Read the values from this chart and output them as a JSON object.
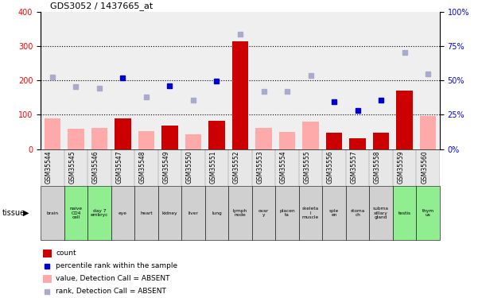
{
  "title": "GDS3052 / 1437665_at",
  "samples": [
    "GSM35544",
    "GSM35545",
    "GSM35546",
    "GSM35547",
    "GSM35548",
    "GSM35549",
    "GSM35550",
    "GSM35551",
    "GSM35552",
    "GSM35553",
    "GSM35554",
    "GSM35555",
    "GSM35556",
    "GSM35557",
    "GSM35558",
    "GSM35559",
    "GSM35560"
  ],
  "tissues": [
    "brain",
    "naive\nCD4\ncell",
    "day 7\nembryc",
    "eye",
    "heart",
    "kidney",
    "liver",
    "lung",
    "lymph\nnode",
    "ovar\ny",
    "placen\nta",
    "skeleta\nl\nmuscle",
    "sple\nen",
    "stoma\nch",
    "subma\nxillary\ngland",
    "testis",
    "thym\nus"
  ],
  "tissue_green": [
    false,
    true,
    true,
    false,
    false,
    false,
    false,
    false,
    false,
    false,
    false,
    false,
    false,
    false,
    false,
    true,
    true
  ],
  "count_values": [
    null,
    null,
    null,
    90,
    null,
    68,
    null,
    83,
    315,
    null,
    null,
    null,
    47,
    32,
    47,
    170,
    null
  ],
  "count_absent": [
    90,
    58,
    62,
    null,
    53,
    null,
    42,
    null,
    null,
    62,
    50,
    80,
    null,
    null,
    null,
    null,
    97
  ],
  "rank_values": [
    null,
    null,
    null,
    207,
    null,
    185,
    null,
    198,
    null,
    null,
    null,
    null,
    138,
    112,
    142,
    null,
    null
  ],
  "rank_absent": [
    210,
    182,
    178,
    null,
    153,
    null,
    143,
    null,
    335,
    168,
    168,
    215,
    null,
    null,
    null,
    282,
    220
  ],
  "ylim_left": [
    0,
    400
  ],
  "ylim_right": [
    0,
    100
  ],
  "yticks_left": [
    0,
    100,
    200,
    300,
    400
  ],
  "yticks_right": [
    0,
    25,
    50,
    75,
    100
  ],
  "ytick_labels_right": [
    "0%",
    "25%",
    "50%",
    "75%",
    "100%"
  ],
  "bar_color_red": "#cc0000",
  "bar_color_pink": "#ffaaaa",
  "dot_color_blue": "#0000cc",
  "dot_color_lightblue": "#aaaacc",
  "bg_color": "#ffffff",
  "tissue_row_gray": "#d0d0d0",
  "tissue_row_green": "#90ee90",
  "sample_row_gray": "#d8d8d8"
}
